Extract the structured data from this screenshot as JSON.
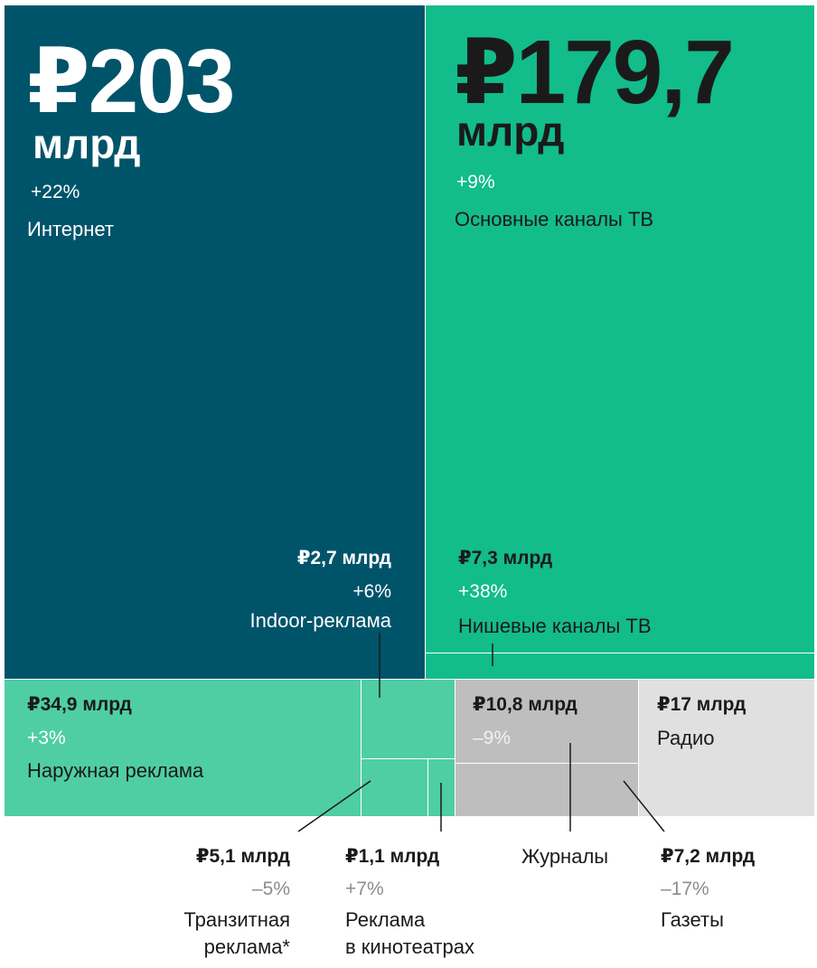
{
  "chart_data": {
    "type": "treemap",
    "colors": {
      "internet": "#00546a",
      "tv": "#12bc8b",
      "outdoor": "#4fcea4",
      "print": "#bebebe",
      "radio": "#e0e0e0",
      "text_dark": "#1a1a1a",
      "text_grey": "#8c8c8c",
      "text_white": "#ffffff"
    },
    "segments": [
      {
        "id": "internet",
        "big": "₽203",
        "unit": "млрд",
        "value": 203,
        "change": "+22%",
        "category": "Интернет"
      },
      {
        "id": "tv_main",
        "big": "₽179,7",
        "unit": "млрд",
        "value": 179.7,
        "change": "+9%",
        "category": "Основные каналы ТВ"
      },
      {
        "id": "tv_niche",
        "value_label": "₽7,3 млрд",
        "value": 7.3,
        "change": "+38%",
        "category": "Нишевые каналы ТВ"
      },
      {
        "id": "indoor",
        "value_label": "₽2,7 млрд",
        "value": 2.7,
        "change": "+6%",
        "category": "Indoor-реклама"
      },
      {
        "id": "outdoor",
        "value_label": "₽34,9 млрд",
        "value": 34.9,
        "change": "+3%",
        "category": "Наружная реклама"
      },
      {
        "id": "transit",
        "value_label": "₽5,1 млрд",
        "value": 5.1,
        "change": "–5%",
        "category_line1": "Транзитная",
        "category_line2": "реклама*"
      },
      {
        "id": "cinema",
        "value_label": "₽1,1 млрд",
        "value": 1.1,
        "change": "+7%",
        "category_line1": "Реклама",
        "category_line2": "в кинотеатрах"
      },
      {
        "id": "magazines",
        "value_label": "₽10,8 млрд",
        "value": 10.8,
        "change": "–9%",
        "category": "Журналы"
      },
      {
        "id": "newspapers",
        "value_label": "₽7,2 млрд",
        "value": 7.2,
        "change": "–17%",
        "category": "Газеты"
      },
      {
        "id": "radio",
        "value_label": "₽17 млрд",
        "value": 17,
        "category": "Радио"
      }
    ]
  }
}
